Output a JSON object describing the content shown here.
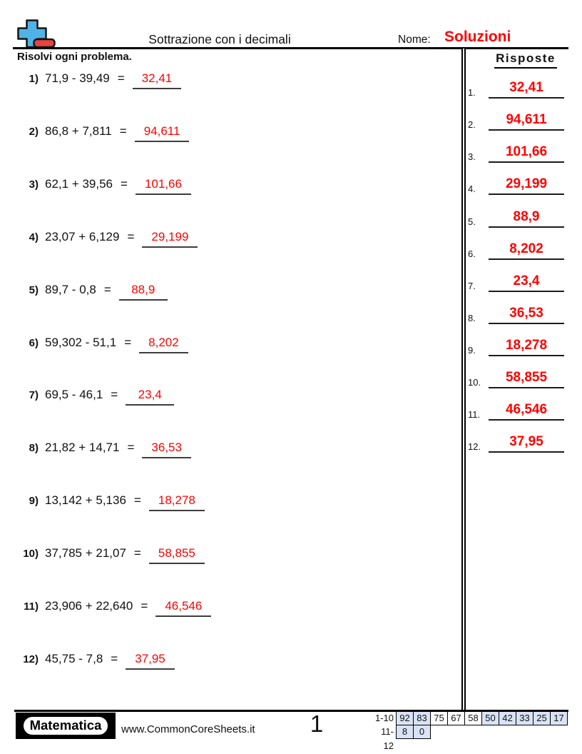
{
  "header": {
    "title": "Sottrazione con i decimali",
    "name_label": "Nome:",
    "name_value": "Soluzioni",
    "instructions": "Risolvi ogni problema."
  },
  "icon": {
    "name": "plus-minus-math-icon",
    "plus_color": "#4fb3e6",
    "minus_color": "#e8443f"
  },
  "colors": {
    "answer_red": "#ff0000",
    "highlight_cell_blue": "#d9e3f5"
  },
  "problems": [
    {
      "num": "1)",
      "expression": "71,9 - 39,49",
      "equals": "=",
      "answer": "32,41"
    },
    {
      "num": "2)",
      "expression": "86,8 + 7,811",
      "equals": "=",
      "answer": "94,611"
    },
    {
      "num": "3)",
      "expression": "62,1 + 39,56",
      "equals": "=",
      "answer": "101,66"
    },
    {
      "num": "4)",
      "expression": "23,07 + 6,129",
      "equals": "=",
      "answer": "29,199"
    },
    {
      "num": "5)",
      "expression": "89,7 - 0,8",
      "equals": "=",
      "answer": "88,9"
    },
    {
      "num": "6)",
      "expression": "59,302 - 51,1",
      "equals": "=",
      "answer": "8,202"
    },
    {
      "num": "7)",
      "expression": "69,5 - 46,1",
      "equals": "=",
      "answer": "23,4"
    },
    {
      "num": "8)",
      "expression": "21,82 + 14,71",
      "equals": "=",
      "answer": "36,53"
    },
    {
      "num": "9)",
      "expression": "13,142 + 5,136",
      "equals": "=",
      "answer": "18,278"
    },
    {
      "num": "10)",
      "expression": "37,785 + 21,07",
      "equals": "=",
      "answer": "58,855"
    },
    {
      "num": "11)",
      "expression": "23,906 + 22,640",
      "equals": "=",
      "answer": "46,546"
    },
    {
      "num": "12)",
      "expression": "45,75 - 7,8",
      "equals": "=",
      "answer": "37,95"
    }
  ],
  "answers_panel": {
    "title": "Risposte",
    "items": [
      {
        "num": "1.",
        "value": "32,41"
      },
      {
        "num": "2.",
        "value": "94,611"
      },
      {
        "num": "3.",
        "value": "101,66"
      },
      {
        "num": "4.",
        "value": "29,199"
      },
      {
        "num": "5.",
        "value": "88,9"
      },
      {
        "num": "6.",
        "value": "8,202"
      },
      {
        "num": "7.",
        "value": "23,4"
      },
      {
        "num": "8.",
        "value": "36,53"
      },
      {
        "num": "9.",
        "value": "18,278"
      },
      {
        "num": "10.",
        "value": "58,855"
      },
      {
        "num": "11.",
        "value": "46,546"
      },
      {
        "num": "12.",
        "value": "37,95"
      }
    ]
  },
  "footer": {
    "brand": "Matematica",
    "website": "www.CommonCoreSheets.it",
    "page_number": "1",
    "score_table": {
      "rows": [
        {
          "label": "1-10",
          "cells": [
            {
              "value": "92",
              "highlighted": true
            },
            {
              "value": "83",
              "highlighted": true
            },
            {
              "value": "75",
              "highlighted": false
            },
            {
              "value": "67",
              "highlighted": false
            },
            {
              "value": "58",
              "highlighted": false
            },
            {
              "value": "50",
              "highlighted": true
            },
            {
              "value": "42",
              "highlighted": true
            },
            {
              "value": "33",
              "highlighted": true
            },
            {
              "value": "25",
              "highlighted": true
            },
            {
              "value": "17",
              "highlighted": true
            }
          ]
        },
        {
          "label": "11-12",
          "cells": [
            {
              "value": "8",
              "highlighted": true
            },
            {
              "value": "0",
              "highlighted": true
            }
          ]
        }
      ]
    }
  }
}
